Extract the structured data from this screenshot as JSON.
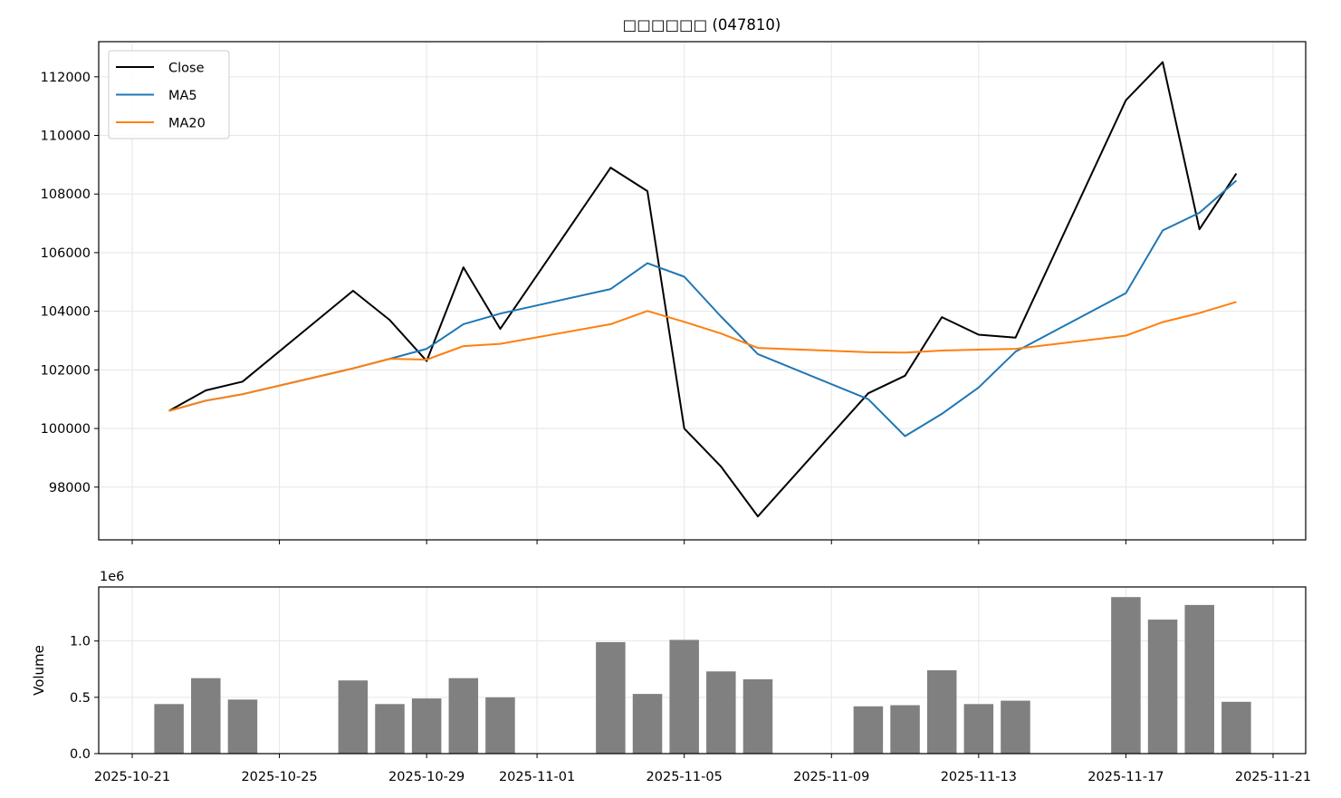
{
  "chart_data": [
    {
      "type": "line",
      "title": "□□□□□□ (047810)",
      "legend_position": "top-left",
      "grid": true,
      "ylim": [
        96200,
        113200
      ],
      "yticks": [
        98000,
        100000,
        102000,
        104000,
        106000,
        108000,
        110000,
        112000
      ],
      "xlim": [
        "2025-10-21",
        "2025-11-21"
      ],
      "x": [
        "2025-10-22",
        "2025-10-23",
        "2025-10-24",
        "2025-10-27",
        "2025-10-28",
        "2025-10-29",
        "2025-10-30",
        "2025-10-31",
        "2025-11-03",
        "2025-11-04",
        "2025-11-05",
        "2025-11-06",
        "2025-11-07",
        "2025-11-10",
        "2025-11-11",
        "2025-11-12",
        "2025-11-13",
        "2025-11-14",
        "2025-11-17",
        "2025-11-18",
        "2025-11-19",
        "2025-11-20"
      ],
      "series": [
        {
          "name": "Close",
          "color": "#000000",
          "values": [
            100600,
            101300,
            101600,
            104700,
            103700,
            102300,
            105500,
            103400,
            108900,
            108100,
            100000,
            98700,
            97000,
            101200,
            101800,
            103800,
            103200,
            103100,
            111200,
            112500,
            106800,
            108700
          ]
        },
        {
          "name": "MA5",
          "color": "#1f77b4",
          "values": [
            100600,
            100950,
            101170,
            102050,
            102380,
            102720,
            103560,
            103920,
            104760,
            105640,
            105180,
            103820,
            102540,
            101000,
            99740,
            100500,
            101400,
            102620,
            104620,
            106760,
            107360,
            108460
          ]
        },
        {
          "name": "MA20",
          "color": "#ff7f0e",
          "values": [
            100600,
            100950,
            101170,
            102050,
            102380,
            102350,
            102810,
            102890,
            103560,
            104010,
            103640,
            103240,
            102750,
            102600,
            102590,
            102660,
            102690,
            102720,
            103170,
            103630,
            103940,
            104320
          ]
        }
      ]
    },
    {
      "type": "bar",
      "ylabel": "Volume",
      "y_offset_label": "1e6",
      "grid": true,
      "ylim": [
        0,
        1.48
      ],
      "yticks": [
        0.0,
        0.5,
        1.0
      ],
      "ytick_labels": [
        "0.0",
        "0.5",
        "1.0"
      ],
      "xlim": [
        "2025-10-21",
        "2025-11-21"
      ],
      "bar_color": "#808080",
      "xticks": [
        "2025-10-21",
        "2025-10-25",
        "2025-10-29",
        "2025-11-01",
        "2025-11-05",
        "2025-11-09",
        "2025-11-13",
        "2025-11-17",
        "2025-11-21"
      ],
      "x": [
        "2025-10-22",
        "2025-10-23",
        "2025-10-24",
        "2025-10-27",
        "2025-10-28",
        "2025-10-29",
        "2025-10-30",
        "2025-10-31",
        "2025-11-03",
        "2025-11-04",
        "2025-11-05",
        "2025-11-06",
        "2025-11-07",
        "2025-11-10",
        "2025-11-11",
        "2025-11-12",
        "2025-11-13",
        "2025-11-14",
        "2025-11-17",
        "2025-11-18",
        "2025-11-19",
        "2025-11-20"
      ],
      "values": [
        0.44,
        0.67,
        0.48,
        0.65,
        0.44,
        0.49,
        0.67,
        0.5,
        0.99,
        0.53,
        1.01,
        0.73,
        0.66,
        0.42,
        0.43,
        0.74,
        0.44,
        0.47,
        1.39,
        1.19,
        1.32,
        0.46
      ]
    }
  ]
}
